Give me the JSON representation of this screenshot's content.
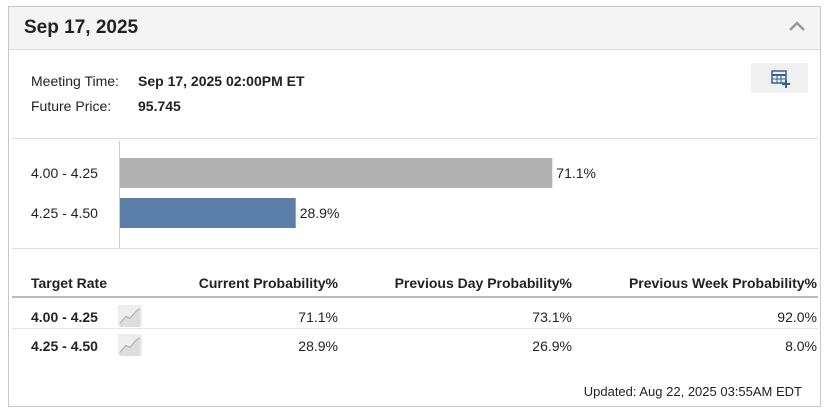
{
  "header": {
    "title": "Sep 17, 2025"
  },
  "meeting": {
    "time_label": "Meeting Time:",
    "time_value": "Sep 17, 2025 02:00PM ET",
    "price_label": "Future Price:",
    "price_value": "95.745"
  },
  "chart_data": {
    "type": "bar",
    "orientation": "horizontal",
    "categories": [
      "4.00 - 4.25",
      "4.25 - 4.50"
    ],
    "values": [
      71.1,
      28.9
    ],
    "value_labels": [
      "71.1%",
      "28.9%"
    ],
    "colors": [
      "#b1b1b1",
      "#5b7fa9"
    ]
  },
  "table": {
    "headers": [
      "Target Rate",
      "Current Probability%",
      "Previous Day Probability%",
      "Previous Week Probability%"
    ],
    "rows": [
      [
        "4.00 - 4.25",
        "71.1%",
        "73.1%",
        "92.0%"
      ],
      [
        "4.25 - 4.50",
        "28.9%",
        "26.9%",
        "8.0%"
      ]
    ]
  },
  "footer": {
    "updated": "Updated: Aug 22, 2025 03:55AM EDT"
  }
}
